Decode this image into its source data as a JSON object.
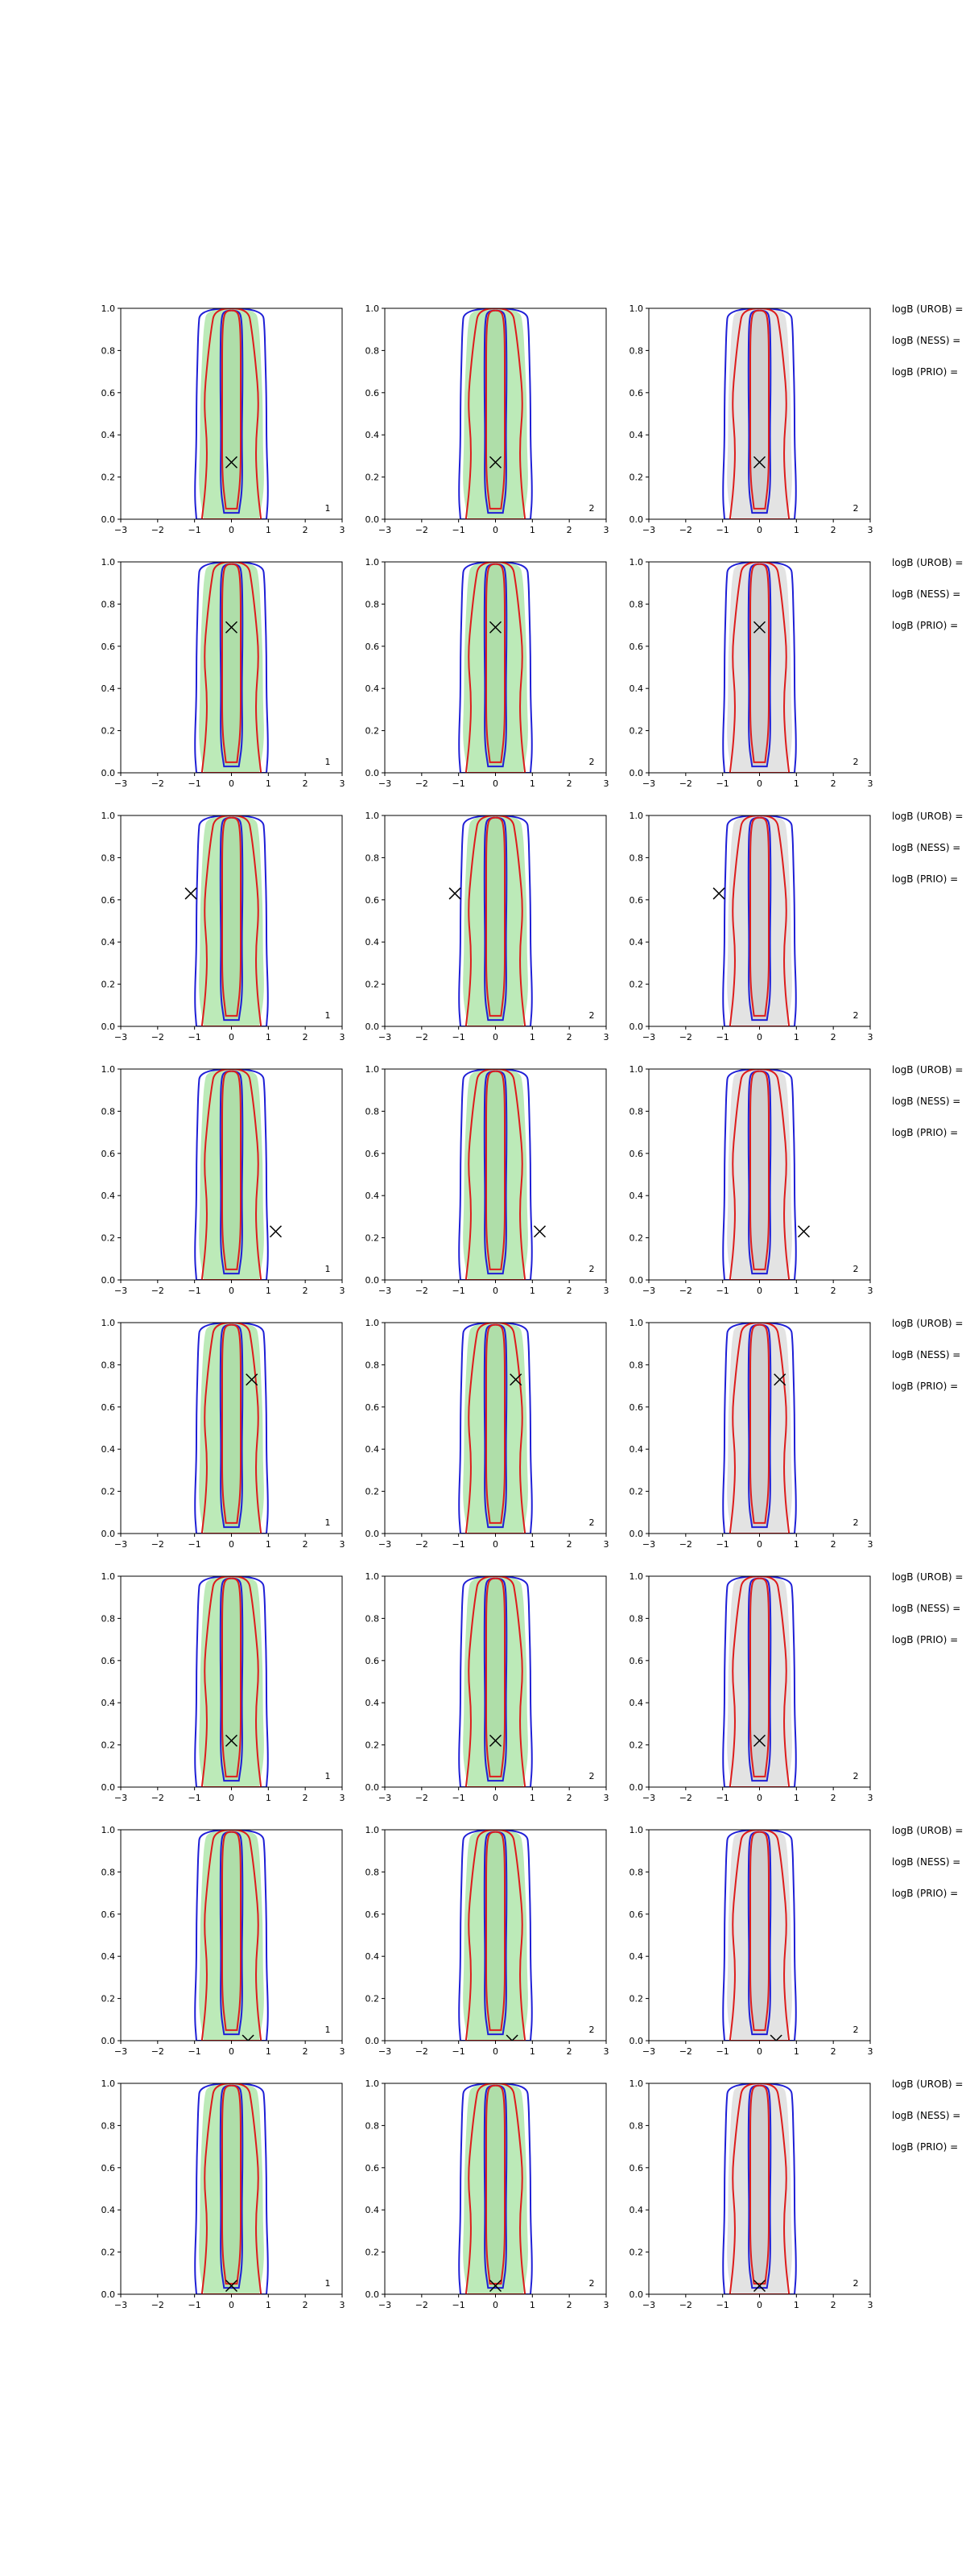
{
  "figure": {
    "rows": 8,
    "cols": 3,
    "xlim": [
      -3,
      3
    ],
    "ylim": [
      0,
      1
    ],
    "xticks": [
      "−3",
      "−2",
      "−1",
      "0",
      "1",
      "2",
      "3"
    ],
    "yticks": [
      "0.0",
      "0.2",
      "0.4",
      "0.6",
      "0.8",
      "1.0"
    ],
    "side_labels": [
      "logB (UROB) =",
      "logB (NESS) =",
      "logB (PRIO) ="
    ],
    "colors": {
      "blue": "#1f1fd6",
      "red": "#dd1c1c",
      "fill_green": "#b5e8b0",
      "fill_grey": "#e0e0e0",
      "marker": "#000000"
    }
  },
  "chart_data": [
    {
      "type": "contour",
      "row": 1,
      "marker": [
        0.0,
        0.27
      ],
      "panel_labels": [
        "1",
        "2",
        "2"
      ],
      "ylim": [
        0,
        1
      ],
      "xlim": [
        -3,
        3
      ]
    },
    {
      "type": "contour",
      "row": 2,
      "marker": [
        0.0,
        0.69
      ],
      "panel_labels": [
        "1",
        "2",
        "2"
      ],
      "ylim": [
        0,
        1
      ],
      "xlim": [
        -3,
        3
      ]
    },
    {
      "type": "contour",
      "row": 3,
      "marker": [
        -1.1,
        0.63
      ],
      "panel_labels": [
        "1",
        "2",
        "2"
      ],
      "ylim": [
        0,
        1
      ],
      "xlim": [
        -3,
        3
      ]
    },
    {
      "type": "contour",
      "row": 4,
      "marker": [
        1.2,
        0.23
      ],
      "panel_labels": [
        "1",
        "2",
        "2"
      ],
      "ylim": [
        0,
        1
      ],
      "xlim": [
        -3,
        3
      ]
    },
    {
      "type": "contour",
      "row": 5,
      "marker": [
        0.55,
        0.73
      ],
      "panel_labels": [
        "1",
        "2",
        "2"
      ],
      "ylim": [
        0,
        1
      ],
      "xlim": [
        -3,
        3
      ]
    },
    {
      "type": "contour",
      "row": 6,
      "marker": [
        0.0,
        0.22
      ],
      "panel_labels": [
        "1",
        "2",
        "2"
      ],
      "ylim": [
        0,
        1
      ],
      "xlim": [
        -3,
        3
      ]
    },
    {
      "type": "contour",
      "row": 7,
      "marker": [
        0.45,
        0.0
      ],
      "panel_labels": [
        "1",
        "2",
        "2"
      ],
      "ylim": [
        0,
        1
      ],
      "xlim": [
        -3,
        3
      ]
    },
    {
      "type": "contour",
      "row": 8,
      "marker": [
        0.0,
        0.04
      ],
      "panel_labels": [
        "1",
        "2",
        "2"
      ],
      "ylim": [
        0,
        1
      ],
      "xlim": [
        -3,
        3
      ]
    }
  ]
}
